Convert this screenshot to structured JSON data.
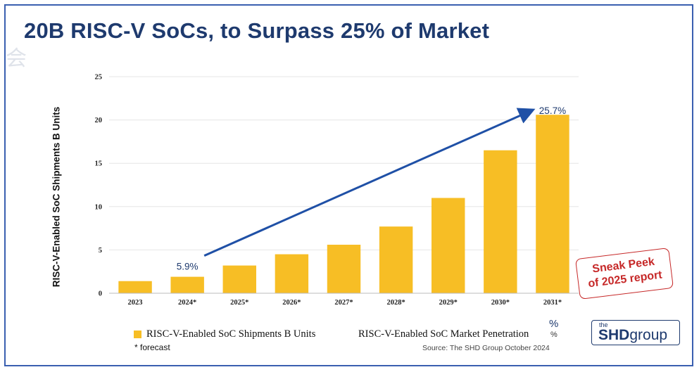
{
  "title": "20B RISC-V SoCs, to Surpass 25% of Market",
  "watermark": "会",
  "colors": {
    "bar": "#f7be25",
    "title": "#1e3a6e",
    "arrow": "#1f50a6",
    "stamp": "#c62828",
    "grid": "#e6e6e6"
  },
  "chart_data": {
    "type": "bar",
    "title": "20B RISC-V SoCs, to Surpass 25% of Market",
    "ylabel": "RISC-V-Enabled SoC Shipments B Units",
    "xlabel": "",
    "ylim": [
      0,
      25
    ],
    "yticks": [
      0,
      5,
      10,
      15,
      20,
      25
    ],
    "grid": true,
    "categories": [
      "2023",
      "2024*",
      "2025*",
      "2026*",
      "2027*",
      "2028*",
      "2029*",
      "2030*",
      "2031*"
    ],
    "series": [
      {
        "name": "RISC-V-Enabled SoC Shipments B Units",
        "values": [
          1.4,
          1.9,
          3.2,
          4.5,
          5.6,
          7.7,
          11.0,
          16.5,
          20.6
        ]
      }
    ],
    "annotations": [
      {
        "category": "2024*",
        "text": "5.9%"
      },
      {
        "category": "2031*",
        "text": "25.7%"
      }
    ],
    "arrow": {
      "from_category": "2024*",
      "to_category": "2031*",
      "label": "RISC-V-Enabled SoC Market Penetration"
    }
  },
  "legend": {
    "series_label": "RISC-V-Enabled SoC Shipments B Units",
    "penetration_label": "RISC-V-Enabled SoC Market Penetration",
    "penetration_unit": "%",
    "penetration_unit_small": "%"
  },
  "forecast_note": "* forecast",
  "source": "Source: The SHD Group October 2024",
  "logo": {
    "small": "the",
    "bold": "SHD",
    "rest": "group"
  },
  "sneak_peek": {
    "line1": "Sneak Peek",
    "line2": "of 2025 report"
  }
}
